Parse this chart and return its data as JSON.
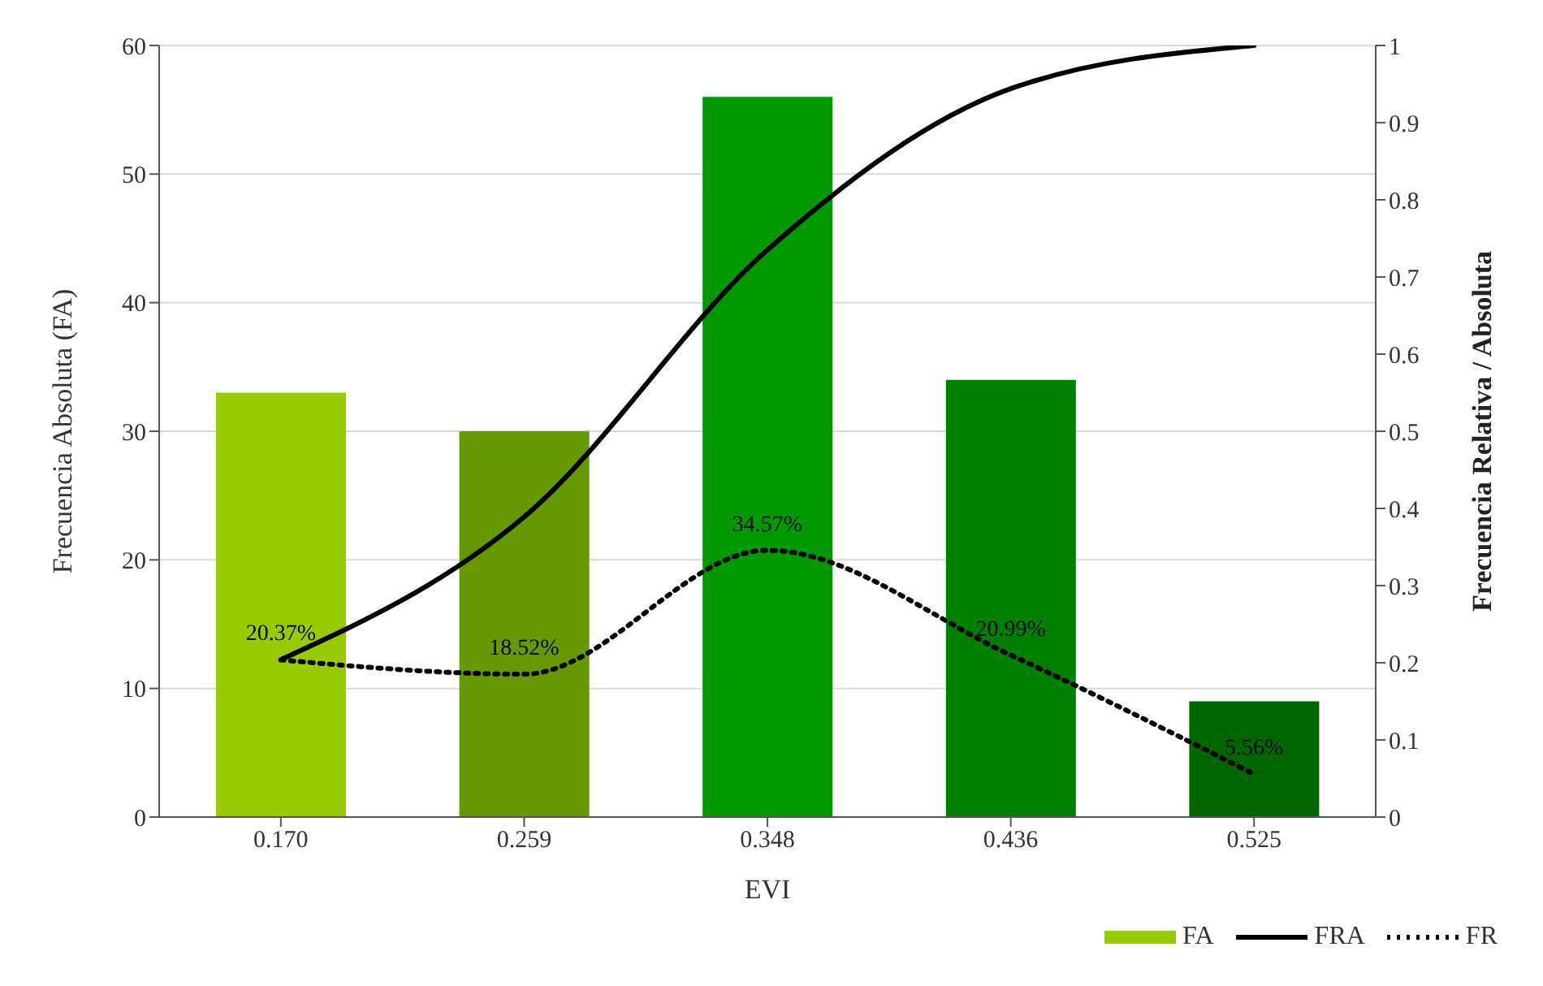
{
  "chart_data": {
    "type": "bar",
    "xlabel": "EVI",
    "ylabel": "Frecuencia Absoluta (FA)",
    "y2label": "Frecuencia Relativa / Absoluta",
    "categories": [
      "0.170",
      "0.259",
      "0.348",
      "0.436",
      "0.525"
    ],
    "series": [
      {
        "name": "FA",
        "color": "#99cc00",
        "colors": [
          "#99cc00",
          "#669900",
          "#009900",
          "#008000",
          "#006600"
        ],
        "values": [
          33,
          30,
          56,
          34,
          9
        ]
      },
      {
        "name": "FRA",
        "type": "line",
        "axis": "y2",
        "color": "#000000",
        "line_style": "solid",
        "values": [
          0.204,
          0.389,
          0.735,
          0.944,
          1.0
        ]
      },
      {
        "name": "FR",
        "type": "line",
        "axis": "y2",
        "color": "#000000",
        "line_style": "dotted",
        "values": [
          0.2037,
          0.1852,
          0.3457,
          0.2099,
          0.0556
        ],
        "value_labels": [
          "20.37%",
          "18.52%",
          "34.57%",
          "20.99%",
          "5.56%"
        ]
      }
    ],
    "ylim": [
      0,
      60
    ],
    "yticks": [
      0,
      10,
      20,
      30,
      40,
      50,
      60
    ],
    "y2lim": [
      0,
      1
    ],
    "y2ticks": [
      0,
      0.1,
      0.2,
      0.3,
      0.4,
      0.5,
      0.6,
      0.7,
      0.8,
      0.9,
      1
    ],
    "grid": "y",
    "legend": "bottom right",
    "marker": "none"
  }
}
